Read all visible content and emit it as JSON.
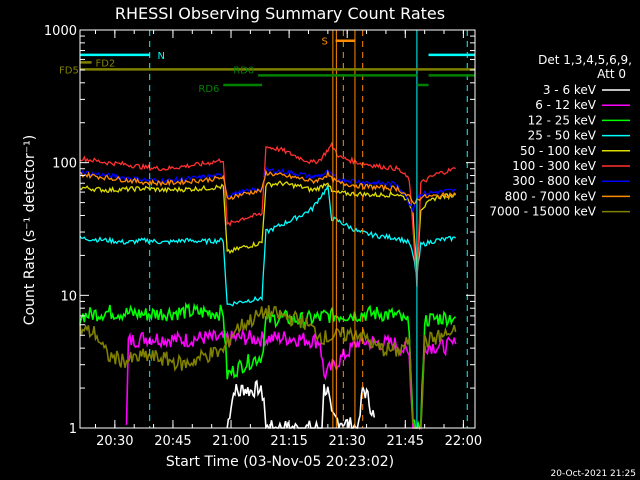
{
  "chart_data": {
    "type": "line",
    "title": "RHESSI Observing Summary Count Rates",
    "xlabel": "Start Time (03-Nov-05 20:23:02)",
    "ylabel": "Count Rate (s⁻¹ detector⁻¹)",
    "yscale": "log",
    "xlim_minutes": [
      -2,
      100
    ],
    "ylim": [
      1,
      1000
    ],
    "x_ticks": [
      {
        "minute": 7,
        "label": "20:30"
      },
      {
        "minute": 22,
        "label": "20:45"
      },
      {
        "minute": 37,
        "label": "21:00"
      },
      {
        "minute": 52,
        "label": "21:15"
      },
      {
        "minute": 67,
        "label": "21:30"
      },
      {
        "minute": 82,
        "label": "21:45"
      },
      {
        "minute": 97,
        "label": "22:00"
      }
    ],
    "y_ticks": [
      {
        "value": 1,
        "label": "1"
      },
      {
        "value": 10,
        "label": "10"
      },
      {
        "value": 100,
        "label": "100"
      },
      {
        "value": 1000,
        "label": "1000"
      }
    ],
    "detector_label": "Det 1,3,4,5,6,9,",
    "attenuator_label": "Att 0",
    "timestamp": "20-Oct-2021 21:25",
    "series": [
      {
        "name": "3 - 6 keV",
        "color": "#ffffff",
        "points": [
          [
            36,
            1
          ],
          [
            37,
            1.5
          ],
          [
            38,
            2
          ],
          [
            39,
            1.8
          ],
          [
            40,
            2
          ],
          [
            42,
            1.9
          ],
          [
            44,
            2
          ],
          [
            45.5,
            1.7
          ],
          [
            46,
            1
          ],
          [
            60.5,
            1
          ],
          [
            61,
            2
          ],
          [
            62,
            1.9
          ],
          [
            63,
            1.2
          ],
          [
            70,
            1
          ],
          [
            71,
            2
          ],
          [
            72,
            1.8
          ],
          [
            74,
            1.2
          ]
        ]
      },
      {
        "name": "6 - 12 keV",
        "color": "#ff00ff",
        "points": [
          [
            10,
            1
          ],
          [
            10.5,
            4.5
          ],
          [
            15,
            4.8
          ],
          [
            20,
            4.7
          ],
          [
            25,
            4.6
          ],
          [
            30,
            4.8
          ],
          [
            35,
            4.7
          ],
          [
            40,
            4.8
          ],
          [
            45,
            4.7
          ],
          [
            50,
            4.8
          ],
          [
            55,
            4.7
          ],
          [
            60,
            4.5
          ],
          [
            61,
            2.5
          ],
          [
            70,
            4.5
          ],
          [
            75,
            4.4
          ],
          [
            80,
            4.3
          ],
          [
            83,
            3.5
          ],
          [
            84,
            1
          ],
          [
            86,
            1
          ],
          [
            87,
            4.2
          ],
          [
            92,
            4.1
          ],
          [
            95,
            4.3
          ]
        ]
      },
      {
        "name": "12 - 25 keV",
        "color": "#00ff00",
        "points": [
          [
            -2,
            7
          ],
          [
            5,
            7.5
          ],
          [
            15,
            7.2
          ],
          [
            25,
            7.5
          ],
          [
            35,
            7.4
          ],
          [
            36,
            2.5
          ],
          [
            40,
            3
          ],
          [
            45,
            3.5
          ],
          [
            46,
            6.5
          ],
          [
            50,
            6.8
          ],
          [
            55,
            6.5
          ],
          [
            60,
            6.8
          ],
          [
            61,
            7
          ],
          [
            70,
            7.2
          ],
          [
            75,
            7.3
          ],
          [
            80,
            7
          ],
          [
            83,
            6
          ],
          [
            84,
            1
          ],
          [
            86,
            1
          ],
          [
            87,
            6.5
          ],
          [
            92,
            6.8
          ],
          [
            95,
            6.9
          ]
        ]
      },
      {
        "name": "25 - 50 keV",
        "color": "#00ffff",
        "points": [
          [
            -2,
            27
          ],
          [
            5,
            26
          ],
          [
            10,
            25
          ],
          [
            15,
            26
          ],
          [
            20,
            25
          ],
          [
            25,
            26
          ],
          [
            30,
            25.5
          ],
          [
            35,
            26
          ],
          [
            36,
            8.5
          ],
          [
            40,
            9
          ],
          [
            45,
            9.5
          ],
          [
            46,
            30
          ],
          [
            50,
            34
          ],
          [
            55,
            40
          ],
          [
            58,
            45
          ],
          [
            60,
            55
          ],
          [
            62,
            65
          ],
          [
            63,
            38
          ],
          [
            65,
            36
          ],
          [
            70,
            30
          ],
          [
            75,
            28
          ],
          [
            80,
            27
          ],
          [
            83,
            25
          ],
          [
            84,
            20
          ],
          [
            85,
            14
          ],
          [
            86,
            24
          ],
          [
            90,
            26
          ],
          [
            95,
            27
          ]
        ]
      },
      {
        "name": "50 - 100 keV",
        "color": "#dddd00",
        "points": [
          [
            -2,
            65
          ],
          [
            5,
            62
          ],
          [
            10,
            63
          ],
          [
            15,
            64
          ],
          [
            20,
            62
          ],
          [
            25,
            63
          ],
          [
            30,
            64
          ],
          [
            35,
            66
          ],
          [
            36,
            21
          ],
          [
            40,
            23
          ],
          [
            45,
            25
          ],
          [
            46,
            68
          ],
          [
            50,
            70
          ],
          [
            55,
            66
          ],
          [
            58,
            62
          ],
          [
            60,
            65
          ],
          [
            62,
            72
          ],
          [
            63,
            60
          ],
          [
            65,
            59
          ],
          [
            70,
            58
          ],
          [
            75,
            57
          ],
          [
            80,
            58
          ],
          [
            83,
            52
          ],
          [
            84,
            40
          ],
          [
            85,
            15
          ],
          [
            86,
            45
          ],
          [
            90,
            55
          ],
          [
            95,
            57
          ]
        ]
      },
      {
        "name": "100 - 300 keV",
        "color": "#ff3030",
        "points": [
          [
            -2,
            108
          ],
          [
            5,
            100
          ],
          [
            10,
            97
          ],
          [
            15,
            92
          ],
          [
            20,
            90
          ],
          [
            25,
            94
          ],
          [
            30,
            98
          ],
          [
            35,
            105
          ],
          [
            36,
            34
          ],
          [
            40,
            38
          ],
          [
            45,
            41
          ],
          [
            46,
            132
          ],
          [
            50,
            125
          ],
          [
            55,
            108
          ],
          [
            58,
            100
          ],
          [
            60,
            105
          ],
          [
            62,
            125
          ],
          [
            63,
            135
          ],
          [
            65,
            110
          ],
          [
            70,
            100
          ],
          [
            75,
            94
          ],
          [
            80,
            90
          ],
          [
            83,
            75
          ],
          [
            84,
            32
          ],
          [
            85,
            12
          ],
          [
            86,
            70
          ],
          [
            90,
            82
          ],
          [
            95,
            90
          ]
        ]
      },
      {
        "name": "300 - 800 keV",
        "color": "#0000ff",
        "points": [
          [
            -2,
            85
          ],
          [
            5,
            80
          ],
          [
            10,
            77
          ],
          [
            15,
            74
          ],
          [
            20,
            73
          ],
          [
            25,
            75
          ],
          [
            30,
            78
          ],
          [
            35,
            80
          ],
          [
            36,
            57
          ],
          [
            40,
            60
          ],
          [
            45,
            64
          ],
          [
            46,
            88
          ],
          [
            50,
            86
          ],
          [
            55,
            82
          ],
          [
            58,
            78
          ],
          [
            60,
            80
          ],
          [
            62,
            85
          ],
          [
            63,
            80
          ],
          [
            65,
            75
          ],
          [
            70,
            72
          ],
          [
            75,
            70
          ],
          [
            80,
            69
          ],
          [
            83,
            50
          ],
          [
            84,
            45
          ],
          [
            85,
            55
          ],
          [
            86,
            58
          ],
          [
            90,
            60
          ],
          [
            95,
            62
          ]
        ]
      },
      {
        "name": "800 - 7000 keV",
        "color": "#ff8c00",
        "points": [
          [
            -2,
            82
          ],
          [
            5,
            77
          ],
          [
            10,
            74
          ],
          [
            15,
            71
          ],
          [
            20,
            70
          ],
          [
            25,
            72
          ],
          [
            30,
            74
          ],
          [
            35,
            77
          ],
          [
            36,
            54
          ],
          [
            40,
            58
          ],
          [
            45,
            62
          ],
          [
            46,
            84
          ],
          [
            50,
            80
          ],
          [
            55,
            76
          ],
          [
            58,
            72
          ],
          [
            60,
            75
          ],
          [
            62,
            82
          ],
          [
            63,
            75
          ],
          [
            65,
            70
          ],
          [
            70,
            67
          ],
          [
            75,
            65
          ],
          [
            80,
            64
          ],
          [
            83,
            55
          ],
          [
            84,
            50
          ],
          [
            85,
            52
          ],
          [
            86,
            55
          ],
          [
            90,
            56
          ],
          [
            95,
            58
          ]
        ]
      },
      {
        "name": "7000 - 15000 keV",
        "color": "#808000",
        "points": [
          [
            -2,
            5.5
          ],
          [
            2,
            5.2
          ],
          [
            5,
            3.5
          ],
          [
            10,
            3.2
          ],
          [
            15,
            3.5
          ],
          [
            20,
            3.3
          ],
          [
            25,
            3
          ],
          [
            30,
            3.5
          ],
          [
            35,
            3.8
          ],
          [
            38,
            5.5
          ],
          [
            42,
            6.5
          ],
          [
            46,
            7.5
          ],
          [
            50,
            7
          ],
          [
            55,
            6.5
          ],
          [
            60,
            5
          ],
          [
            61,
            4.8
          ],
          [
            70,
            5.2
          ],
          [
            75,
            4
          ],
          [
            80,
            3.8
          ],
          [
            83,
            4.5
          ],
          [
            84,
            1
          ],
          [
            86,
            1
          ],
          [
            87,
            4.5
          ],
          [
            92,
            5
          ],
          [
            95,
            5.3
          ]
        ]
      }
    ],
    "state_bars": [
      {
        "label": "N",
        "color": "#00ffff",
        "level": 650,
        "segments": [
          [
            -2,
            16
          ],
          [
            88,
            100
          ]
        ]
      },
      {
        "label": "S",
        "color": "#ff8c00",
        "level": 830,
        "segments": [
          [
            64,
            69
          ]
        ]
      },
      {
        "label": "FD2",
        "color": "#808000",
        "level": 570,
        "segments": [
          [
            -2,
            1
          ]
        ]
      },
      {
        "label": "FD5",
        "color": "#808000",
        "level": 505,
        "segments": [
          [
            -2,
            100
          ]
        ]
      },
      {
        "label": "RD0",
        "color": "#008000",
        "level": 455,
        "segments": [
          [
            44,
            85
          ],
          [
            88,
            100
          ]
        ]
      },
      {
        "label": "RD6",
        "color": "#008000",
        "level": 385,
        "segments": [
          [
            35,
            45
          ],
          [
            85,
            88
          ]
        ]
      }
    ],
    "vlines": [
      {
        "minute": -2,
        "color": "#00ffff",
        "style": "dash"
      },
      {
        "minute": 16,
        "color": "#00ffff",
        "style": "dash"
      },
      {
        "minute": 85,
        "color": "#00ffff",
        "style": "solid"
      },
      {
        "minute": 98,
        "color": "#00ffff",
        "style": "dash"
      },
      {
        "minute": 63.3,
        "color": "#ff8c00",
        "style": "solid"
      },
      {
        "minute": 64.2,
        "color": "#ff8c00",
        "style": "solid"
      },
      {
        "minute": 66,
        "color": "#ff8c00",
        "style": "dash"
      },
      {
        "minute": 69,
        "color": "#ff8c00",
        "style": "solid"
      },
      {
        "minute": 71,
        "color": "#ff8c00",
        "style": "dash"
      }
    ]
  }
}
